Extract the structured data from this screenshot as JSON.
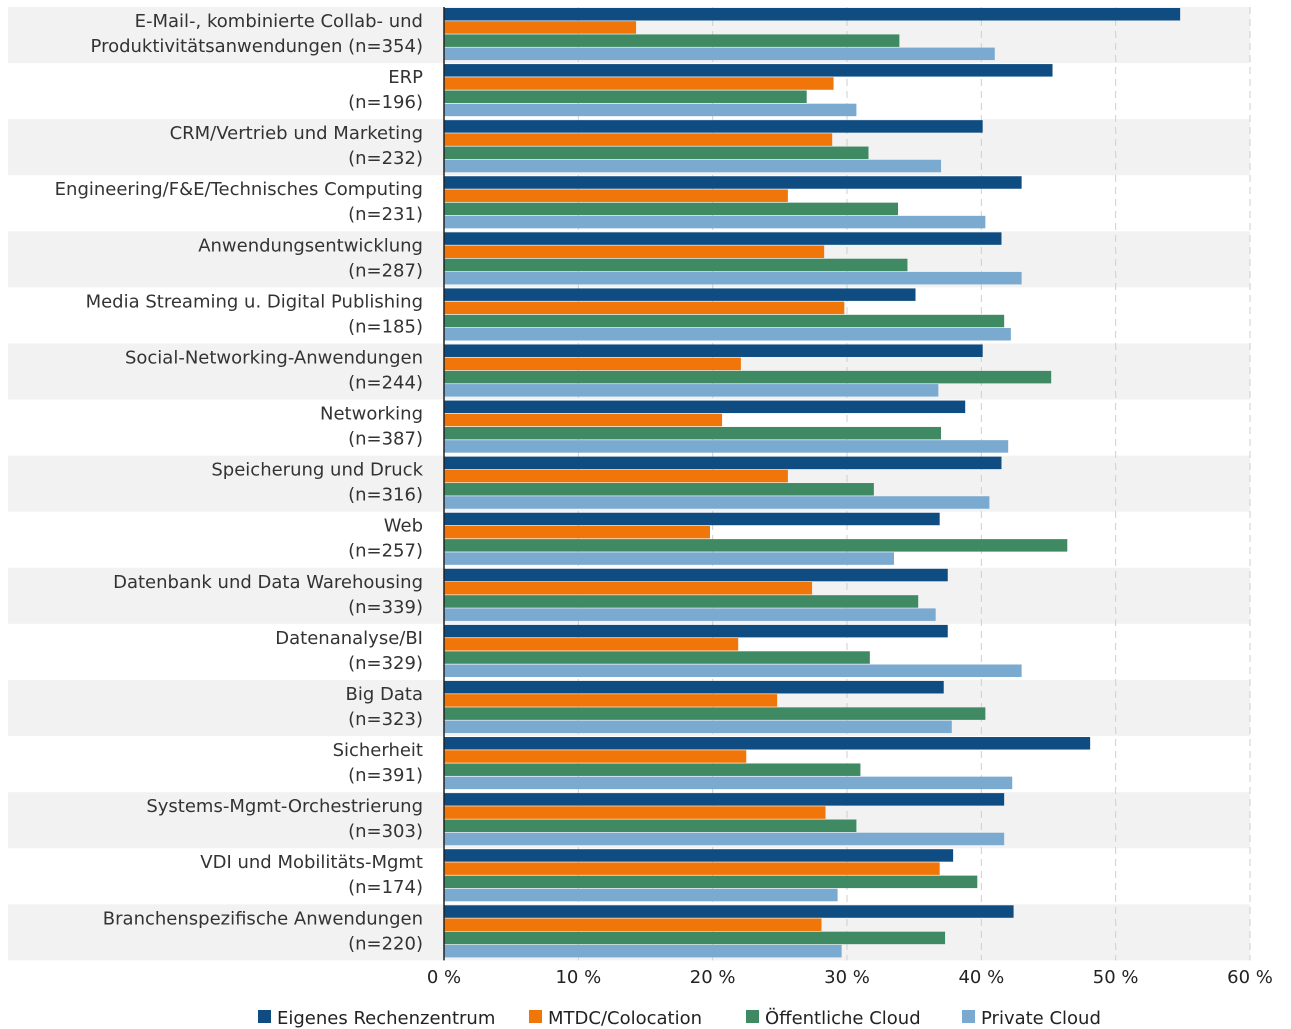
{
  "chart_data": {
    "type": "bar",
    "orientation": "horizontal",
    "categories": [
      [
        "E-Mail-, kombinierte Collab- und",
        "Produktivitätsanwendungen (n=354)"
      ],
      [
        "ERP",
        "(n=196)"
      ],
      [
        "CRM/Vertrieb und Marketing",
        "(n=232)"
      ],
      [
        "Engineering/F&E/Technisches Computing",
        "(n=231)"
      ],
      [
        "Anwendungsentwicklung",
        "(n=287)"
      ],
      [
        "Media Streaming u. Digital Publishing",
        "(n=185)"
      ],
      [
        "Social-Networking-Anwendungen",
        "(n=244)"
      ],
      [
        "Networking",
        "(n=387)"
      ],
      [
        "Speicherung und Druck",
        "(n=316)"
      ],
      [
        "Web",
        "(n=257)"
      ],
      [
        "Datenbank und Data Warehousing",
        "(n=339)"
      ],
      [
        "Datenanalyse/BI",
        "(n=329)"
      ],
      [
        "Big Data",
        "(n=323)"
      ],
      [
        "Sicherheit",
        "(n=391)"
      ],
      [
        "Systems-Mgmt-Orchestrierung",
        "(n=303)"
      ],
      [
        "VDI und Mobilitäts-Mgmt",
        "(n=174)"
      ],
      [
        "Branchenspezifische Anwendungen",
        "(n=220)"
      ]
    ],
    "series": [
      {
        "name": "Eigenes Rechenzentrum",
        "color": "#0f4c81",
        "values": [
          54.8,
          45.3,
          40.1,
          43.0,
          41.5,
          35.1,
          40.1,
          38.8,
          41.5,
          36.9,
          37.5,
          37.5,
          37.2,
          48.1,
          41.7,
          37.9,
          42.4
        ]
      },
      {
        "name": "MTDC/Colocation",
        "color": "#f0760a",
        "values": [
          14.3,
          29.0,
          28.9,
          25.6,
          28.3,
          29.8,
          22.1,
          20.7,
          25.6,
          19.8,
          27.4,
          21.9,
          24.8,
          22.5,
          28.4,
          36.9,
          28.1
        ]
      },
      {
        "name": "Öffentliche Cloud",
        "color": "#3f8a62",
        "values": [
          33.9,
          27.0,
          31.6,
          33.8,
          34.5,
          41.7,
          45.2,
          37.0,
          32.0,
          46.4,
          35.3,
          31.7,
          40.3,
          31.0,
          30.7,
          39.7,
          37.3
        ]
      },
      {
        "name": "Private Cloud",
        "color": "#7aaad0",
        "values": [
          41.0,
          30.7,
          37.0,
          40.3,
          43.0,
          42.2,
          36.8,
          42.0,
          40.6,
          33.5,
          36.6,
          43.0,
          37.8,
          42.3,
          41.7,
          29.3,
          29.6
        ]
      }
    ],
    "xlim": [
      0,
      60
    ],
    "xticks": [
      "0 %",
      "10 %",
      "20 %",
      "30 %",
      "40 %",
      "50 %",
      "60 %"
    ],
    "grid": true,
    "legend_position": "bottom"
  }
}
